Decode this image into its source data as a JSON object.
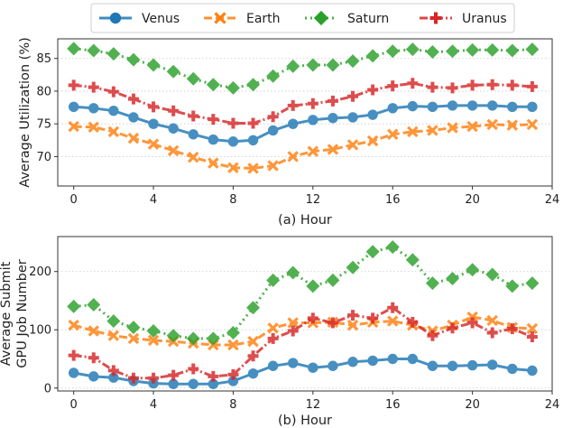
{
  "chart_data": [
    {
      "type": "line",
      "xlabel": "(a) Hour",
      "ylabel": "Average Utilization (%)",
      "x": [
        0,
        1,
        2,
        3,
        4,
        5,
        6,
        7,
        8,
        9,
        10,
        11,
        12,
        13,
        14,
        15,
        16,
        17,
        18,
        19,
        20,
        21,
        22,
        23
      ],
      "xlim": [
        -0.8,
        24
      ],
      "ylim": [
        65.5,
        88
      ],
      "xticks": [
        0,
        4,
        8,
        12,
        16,
        20,
        24
      ],
      "yticks": [
        70,
        75,
        80,
        85
      ],
      "grid": "horizontal dotted",
      "series": [
        {
          "name": "Venus",
          "values": [
            77.6,
            77.4,
            77.0,
            76.0,
            75.0,
            74.3,
            73.4,
            72.6,
            72.3,
            72.5,
            74.0,
            75.0,
            75.6,
            75.9,
            76.0,
            76.4,
            77.4,
            77.7,
            77.6,
            77.8,
            77.8,
            77.8,
            77.6,
            77.6
          ]
        },
        {
          "name": "Earth",
          "values": [
            74.6,
            74.5,
            73.8,
            72.8,
            71.9,
            70.9,
            69.9,
            69.0,
            68.3,
            68.2,
            68.6,
            70.0,
            70.8,
            71.1,
            71.8,
            72.4,
            73.4,
            73.8,
            74.0,
            74.4,
            74.6,
            74.9,
            74.8,
            74.9
          ]
        },
        {
          "name": "Saturn",
          "values": [
            86.5,
            86.2,
            85.7,
            84.8,
            84.0,
            83.0,
            81.9,
            81.0,
            80.5,
            81.0,
            82.3,
            83.8,
            84.0,
            84.0,
            84.6,
            85.4,
            86.1,
            86.4,
            86.0,
            86.1,
            86.3,
            86.3,
            86.2,
            86.4
          ]
        },
        {
          "name": "Uranus",
          "values": [
            80.9,
            80.6,
            79.9,
            78.8,
            77.6,
            77.0,
            76.2,
            75.7,
            75.1,
            75.1,
            76.1,
            77.8,
            78.1,
            78.5,
            79.2,
            80.2,
            80.8,
            81.2,
            80.6,
            80.5,
            80.9,
            81.0,
            80.9,
            80.7
          ]
        }
      ]
    },
    {
      "type": "line",
      "xlabel": "(b) Hour",
      "ylabel": [
        "Average Submit",
        "GPU Job Number"
      ],
      "x": [
        0,
        1,
        2,
        3,
        4,
        5,
        6,
        7,
        8,
        9,
        10,
        11,
        12,
        13,
        14,
        15,
        16,
        17,
        18,
        19,
        20,
        21,
        22,
        23
      ],
      "xlim": [
        -0.8,
        24
      ],
      "ylim": [
        -5,
        260
      ],
      "xticks": [
        0,
        4,
        8,
        12,
        16,
        20,
        24
      ],
      "yticks": [
        0,
        100,
        200
      ],
      "grid": "horizontal dotted",
      "series": [
        {
          "name": "Venus",
          "values": [
            26,
            20,
            18,
            12,
            8,
            7,
            7,
            7,
            12,
            25,
            38,
            43,
            35,
            38,
            45,
            47,
            50,
            50,
            38,
            38,
            39,
            40,
            33,
            30
          ]
        },
        {
          "name": "Earth",
          "values": [
            108,
            98,
            90,
            85,
            82,
            80,
            77,
            74,
            74,
            80,
            103,
            112,
            112,
            113,
            108,
            113,
            115,
            108,
            98,
            108,
            122,
            116,
            104,
            102
          ]
        },
        {
          "name": "Saturn",
          "values": [
            140,
            143,
            115,
            104,
            98,
            90,
            85,
            85,
            95,
            138,
            185,
            198,
            175,
            185,
            207,
            234,
            242,
            220,
            180,
            188,
            203,
            195,
            175,
            180
          ]
        },
        {
          "name": "Uranus",
          "values": [
            56,
            52,
            30,
            17,
            17,
            22,
            33,
            20,
            23,
            55,
            85,
            98,
            120,
            112,
            125,
            120,
            138,
            113,
            90,
            103,
            112,
            95,
            102,
            88
          ]
        }
      ]
    }
  ],
  "legend": {
    "placement": "top-center",
    "items": [
      {
        "label": "Venus",
        "color": "#1f77b4",
        "marker": "circle",
        "line": "solid"
      },
      {
        "label": "Earth",
        "color": "#ff7f0e",
        "marker": "x",
        "line": "dashed"
      },
      {
        "label": "Saturn",
        "color": "#2ca02c",
        "marker": "diamond",
        "line": "dotted"
      },
      {
        "label": "Uranus",
        "color": "#d62728",
        "marker": "plus",
        "line": "dashdot"
      }
    ]
  }
}
